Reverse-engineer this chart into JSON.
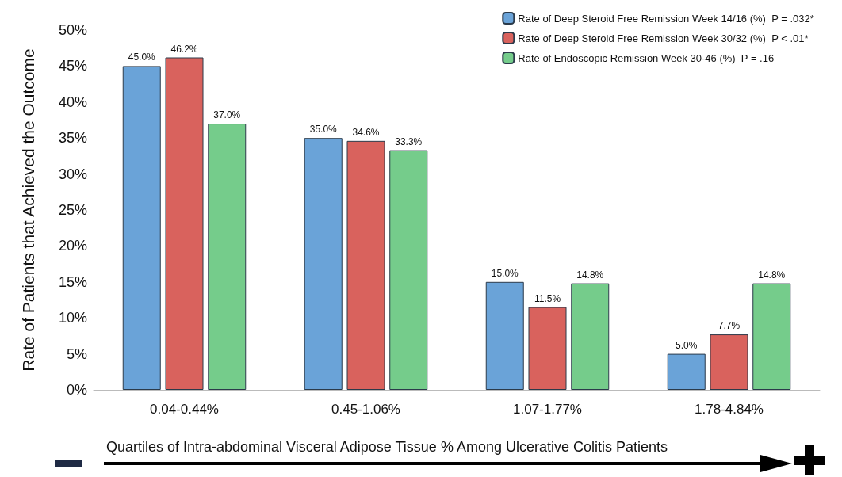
{
  "chart_data": {
    "type": "bar",
    "ylabel": "Rate of Patients that Achieved the Outcome",
    "xlabel": "Quartiles of Intra-abdominal Visceral Adipose Tissue % Among Ulcerative Colitis Patients",
    "categories": [
      "0.04-0.44%",
      "0.45-1.06%",
      "1.07-1.77%",
      "1.78-4.84%"
    ],
    "series": [
      {
        "name": "Rate of Deep Steroid Free Remission Week 14/16 (%)  P = .032*",
        "color": "#6aa3d8",
        "values": [
          45.0,
          35.0,
          15.0,
          5.0
        ],
        "value_labels": [
          "45.0%",
          "35.0%",
          "15.0%",
          "5.0%"
        ]
      },
      {
        "name": "Rate of Deep Steroid Free Remission Week 30/32 (%)  P < .01*",
        "color": "#d9625d",
        "values": [
          46.2,
          34.6,
          11.5,
          7.7
        ],
        "value_labels": [
          "46.2%",
          "34.6%",
          "11.5%",
          "7.7%"
        ]
      },
      {
        "name": "Rate of Endoscopic Remission Week 30-46 (%)  P = .16",
        "color": "#75cc8b",
        "values": [
          37.0,
          33.3,
          14.8,
          14.8
        ],
        "value_labels": [
          "37.0%",
          "33.3%",
          "14.8%",
          "14.8%"
        ]
      }
    ],
    "ylim": [
      0,
      50
    ],
    "yticks": [
      {
        "value": 0,
        "label": "0%"
      },
      {
        "value": 5,
        "label": "5%"
      },
      {
        "value": 10,
        "label": "10%"
      },
      {
        "value": 15,
        "label": "15%"
      },
      {
        "value": 20,
        "label": "20%"
      },
      {
        "value": 25,
        "label": "25%"
      },
      {
        "value": 30,
        "label": "30%"
      },
      {
        "value": 35,
        "label": "35%"
      },
      {
        "value": 40,
        "label": "40%"
      },
      {
        "value": 45,
        "label": "45%"
      },
      {
        "value": 50,
        "label": "50%"
      }
    ],
    "grid": false,
    "legend": "top right"
  }
}
